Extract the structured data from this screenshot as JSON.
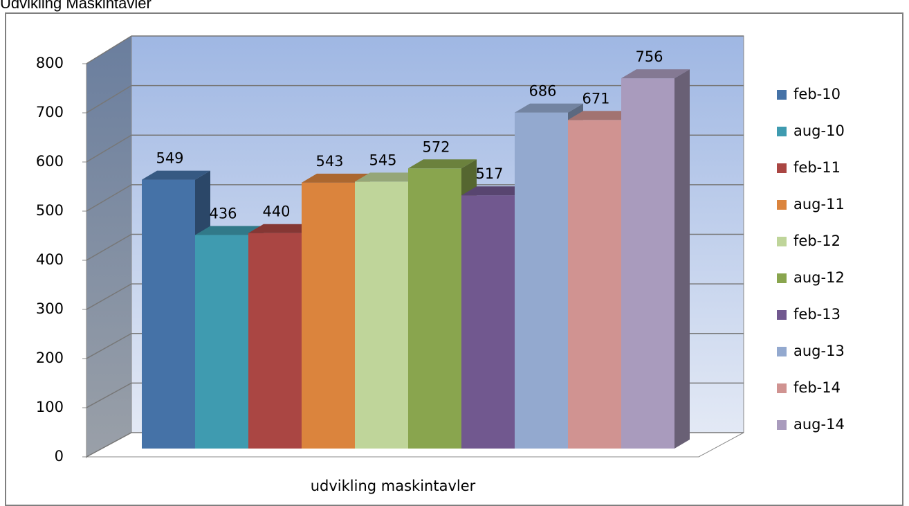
{
  "chart_data": {
    "type": "bar3d",
    "title": "Udvikling Maskintavler",
    "categories": [
      "udvikling maskintavler"
    ],
    "series": [
      {
        "name": "feb-10",
        "color": "#4572a7",
        "values": [
          549
        ]
      },
      {
        "name": "aug-10",
        "color": "#3f9bb0",
        "values": [
          436
        ]
      },
      {
        "name": "feb-11",
        "color": "#aa4643",
        "values": [
          440
        ]
      },
      {
        "name": "aug-11",
        "color": "#db843d",
        "values": [
          543
        ]
      },
      {
        "name": "feb-12",
        "color": "#bfd59a",
        "values": [
          545
        ]
      },
      {
        "name": "aug-12",
        "color": "#89a54e",
        "values": [
          572
        ]
      },
      {
        "name": "feb-13",
        "color": "#71588f",
        "values": [
          517
        ]
      },
      {
        "name": "aug-13",
        "color": "#93a9cf",
        "values": [
          686
        ]
      },
      {
        "name": "feb-14",
        "color": "#d09391",
        "values": [
          671
        ]
      },
      {
        "name": "aug-14",
        "color": "#a99bbd",
        "values": [
          756
        ]
      }
    ],
    "ylim": [
      0,
      800
    ],
    "yticks": [
      0,
      100,
      200,
      300,
      400,
      500,
      600,
      700,
      800
    ],
    "grid": true,
    "legend": "right"
  }
}
